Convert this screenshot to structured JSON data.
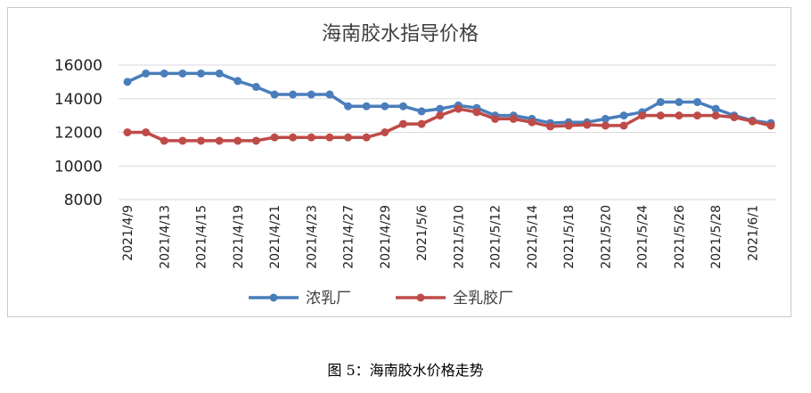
{
  "caption": "图 5：海南胶水价格走势",
  "chart_data": {
    "type": "line",
    "title": "海南胶水指导价格",
    "xlabel": "",
    "ylabel": "",
    "ylim": [
      8000,
      16000
    ],
    "yticks": [
      16000,
      14000,
      12000,
      10000,
      8000
    ],
    "grid": true,
    "legend_position": "bottom",
    "x": [
      "2021/4/9",
      "2021/4/12",
      "2021/4/13",
      "2021/4/14",
      "2021/4/15",
      "2021/4/16",
      "2021/4/19",
      "2021/4/20",
      "2021/4/21",
      "2021/4/22",
      "2021/4/23",
      "2021/4/26",
      "2021/4/27",
      "2021/4/28",
      "2021/4/29",
      "2021/4/30",
      "2021/5/6",
      "2021/5/7",
      "2021/5/10",
      "2021/5/11",
      "2021/5/12",
      "2021/5/13",
      "2021/5/14",
      "2021/5/17",
      "2021/5/18",
      "2021/5/19",
      "2021/5/20",
      "2021/5/21",
      "2021/5/24",
      "2021/5/25",
      "2021/5/26",
      "2021/5/27",
      "2021/5/28",
      "2021/5/31",
      "2021/6/1",
      "2021/6/2"
    ],
    "x_tick_labels": [
      "2021/4/9",
      "2021/4/13",
      "2021/4/15",
      "2021/4/19",
      "2021/4/21",
      "2021/4/23",
      "2021/4/27",
      "2021/4/29",
      "2021/5/6",
      "2021/5/10",
      "2021/5/12",
      "2021/5/14",
      "2021/5/18",
      "2021/5/20",
      "2021/5/24",
      "2021/5/26",
      "2021/5/28",
      "2021/6/1"
    ],
    "series": [
      {
        "name": "浓乳厂",
        "color": "#4a7ebb",
        "values": [
          15000,
          15500,
          15500,
          15500,
          15500,
          15500,
          15050,
          14700,
          14250,
          14250,
          14250,
          14250,
          13550,
          13550,
          13550,
          13550,
          13250,
          13400,
          13600,
          13450,
          13000,
          13000,
          12800,
          12550,
          12600,
          12600,
          12800,
          13000,
          13200,
          13800,
          13800,
          13800,
          13400,
          13000,
          12700,
          12550
        ]
      },
      {
        "name": "全乳胶厂",
        "color": "#be4b48",
        "values": [
          12000,
          12000,
          11500,
          11500,
          11500,
          11500,
          11500,
          11500,
          11700,
          11700,
          11700,
          11700,
          11700,
          11700,
          12000,
          12500,
          12500,
          13000,
          13400,
          13200,
          12800,
          12800,
          12600,
          12350,
          12400,
          12450,
          12400,
          12400,
          13000,
          13000,
          13000,
          13000,
          13000,
          12900,
          12650,
          12400
        ]
      }
    ]
  }
}
